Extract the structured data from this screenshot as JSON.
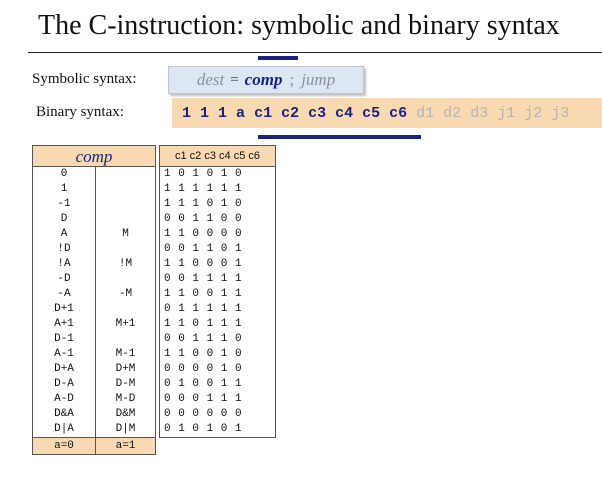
{
  "title": "The C-instruction: symbolic and binary syntax",
  "symbolic": {
    "label": "Symbolic syntax:",
    "dest": "dest",
    "eq": "=",
    "comp": "comp",
    "semi": ";",
    "jump": "jump"
  },
  "binary": {
    "label": "Binary syntax:",
    "bits": [
      {
        "text": "1",
        "highlight": true
      },
      {
        "text": "1",
        "highlight": true
      },
      {
        "text": "1",
        "highlight": true
      },
      {
        "text": "a",
        "highlight": true
      },
      {
        "text": "c1",
        "highlight": true
      },
      {
        "text": "c2",
        "highlight": true
      },
      {
        "text": "c3",
        "highlight": true
      },
      {
        "text": "c4",
        "highlight": true
      },
      {
        "text": "c5",
        "highlight": true
      },
      {
        "text": "c6",
        "highlight": true
      },
      {
        "text": "d1",
        "highlight": false
      },
      {
        "text": "d2",
        "highlight": false
      },
      {
        "text": "d3",
        "highlight": false
      },
      {
        "text": "j1",
        "highlight": false
      },
      {
        "text": "j2",
        "highlight": false
      },
      {
        "text": "j3",
        "highlight": false
      }
    ]
  },
  "table": {
    "comp_header": "comp",
    "bits_header": "c1 c2 c3 c4 c5 c6",
    "rows": [
      {
        "a0": "0",
        "a1": "",
        "bits": "1 0 1 0 1 0"
      },
      {
        "a0": "1",
        "a1": "",
        "bits": "1 1 1 1 1 1"
      },
      {
        "a0": "-1",
        "a1": "",
        "bits": "1 1 1 0 1 0"
      },
      {
        "a0": "D",
        "a1": "",
        "bits": "0 0 1 1 0 0"
      },
      {
        "a0": "A",
        "a1": "M",
        "bits": "1 1 0 0 0 0"
      },
      {
        "a0": "!D",
        "a1": "",
        "bits": "0 0 1 1 0 1"
      },
      {
        "a0": "!A",
        "a1": "!M",
        "bits": "1 1 0 0 0 1"
      },
      {
        "a0": "-D",
        "a1": "",
        "bits": "0 0 1 1 1 1"
      },
      {
        "a0": "-A",
        "a1": "-M",
        "bits": "1 1 0 0 1 1"
      },
      {
        "a0": "D+1",
        "a1": "",
        "bits": "0 1 1 1 1 1"
      },
      {
        "a0": "A+1",
        "a1": "M+1",
        "bits": "1 1 0 1 1 1"
      },
      {
        "a0": "D-1",
        "a1": "",
        "bits": "0 0 1 1 1 0"
      },
      {
        "a0": "A-1",
        "a1": "M-1",
        "bits": "1 1 0 0 1 0"
      },
      {
        "a0": "D+A",
        "a1": "D+M",
        "bits": "0 0 0 0 1 0"
      },
      {
        "a0": "D-A",
        "a1": "D-M",
        "bits": "0 1 0 0 1 1"
      },
      {
        "a0": "A-D",
        "a1": "M-D",
        "bits": "0 0 0 1 1 1"
      },
      {
        "a0": "D&A",
        "a1": "D&M",
        "bits": "0 0 0 0 0 0"
      },
      {
        "a0": "D|A",
        "a1": "D|M",
        "bits": "0 1 0 1 0 1"
      }
    ],
    "foot_a0": "a=0",
    "foot_a1": "a=1"
  },
  "colors": {
    "accent": "#1a237e",
    "binary_bg": "#f8d9b2",
    "symbolic_bg": "#dde6f3"
  }
}
